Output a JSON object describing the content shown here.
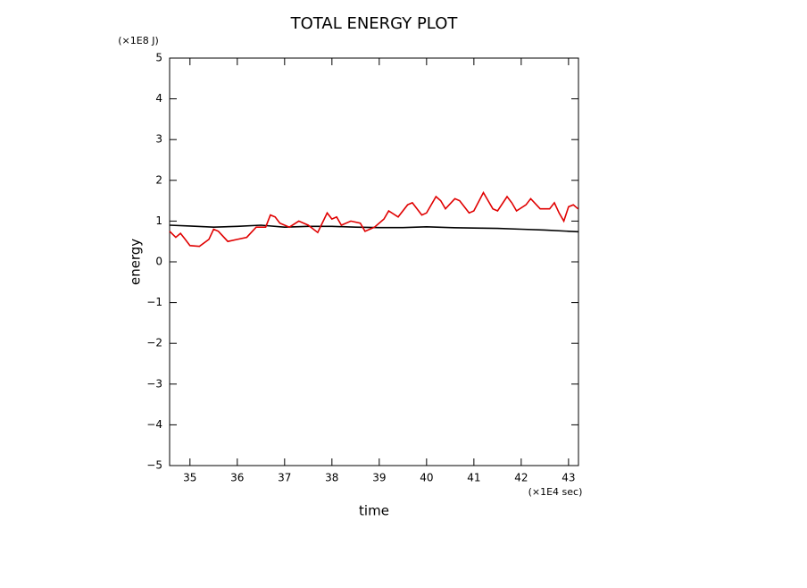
{
  "chart_data": {
    "type": "line",
    "title": "TOTAL ENERGY PLOT",
    "x_label": "time",
    "y_label": "energy",
    "x_unit": "(×1E4 sec)",
    "y_unit": "(×1E8 J)",
    "xlim": [
      34.57,
      43.21
    ],
    "ylim": [
      -5,
      5
    ],
    "xticks": [
      35,
      36,
      37,
      38,
      39,
      40,
      41,
      42,
      43
    ],
    "yticks": [
      {
        "value": -5,
        "label": "−5"
      },
      {
        "value": -4,
        "label": "−4"
      },
      {
        "value": -3,
        "label": "−3"
      },
      {
        "value": -2,
        "label": "−2"
      },
      {
        "value": -1,
        "label": "−1"
      },
      0,
      1,
      2,
      3,
      4,
      5
    ],
    "grid": false,
    "series": [
      {
        "color": "#000000",
        "x": [
          34.57,
          35,
          35.5,
          36,
          36.5,
          37,
          37.5,
          38,
          38.5,
          39,
          39.5,
          40,
          40.5,
          41,
          41.5,
          42,
          42.5,
          43,
          43.2
        ],
        "values": [
          0.9,
          0.88,
          0.85,
          0.87,
          0.9,
          0.85,
          0.87,
          0.87,
          0.85,
          0.84,
          0.84,
          0.86,
          0.84,
          0.83,
          0.82,
          0.8,
          0.78,
          0.75,
          0.74
        ]
      },
      {
        "color": "#e00000",
        "x": [
          34.57,
          34.7,
          34.8,
          34.9,
          35.0,
          35.2,
          35.4,
          35.5,
          35.6,
          35.8,
          36.0,
          36.2,
          36.4,
          36.6,
          36.7,
          36.8,
          36.9,
          37.1,
          37.3,
          37.5,
          37.7,
          37.9,
          38.0,
          38.1,
          38.2,
          38.4,
          38.6,
          38.7,
          38.9,
          39.1,
          39.2,
          39.4,
          39.6,
          39.7,
          39.9,
          40.0,
          40.2,
          40.3,
          40.4,
          40.6,
          40.7,
          40.9,
          41.0,
          41.2,
          41.3,
          41.4,
          41.5,
          41.7,
          41.8,
          41.9,
          42.1,
          42.2,
          42.4,
          42.6,
          42.7,
          42.8,
          42.9,
          43.0,
          43.1,
          43.2
        ],
        "values": [
          0.75,
          0.6,
          0.7,
          0.55,
          0.4,
          0.38,
          0.55,
          0.8,
          0.75,
          0.5,
          0.55,
          0.6,
          0.85,
          0.85,
          1.15,
          1.1,
          0.95,
          0.85,
          1.0,
          0.9,
          0.72,
          1.2,
          1.05,
          1.1,
          0.9,
          1.0,
          0.95,
          0.75,
          0.85,
          1.05,
          1.25,
          1.1,
          1.4,
          1.45,
          1.15,
          1.2,
          1.6,
          1.5,
          1.3,
          1.55,
          1.5,
          1.2,
          1.25,
          1.7,
          1.5,
          1.3,
          1.25,
          1.6,
          1.45,
          1.25,
          1.4,
          1.55,
          1.3,
          1.3,
          1.45,
          1.2,
          1.0,
          1.35,
          1.4,
          1.3
        ]
      }
    ]
  }
}
